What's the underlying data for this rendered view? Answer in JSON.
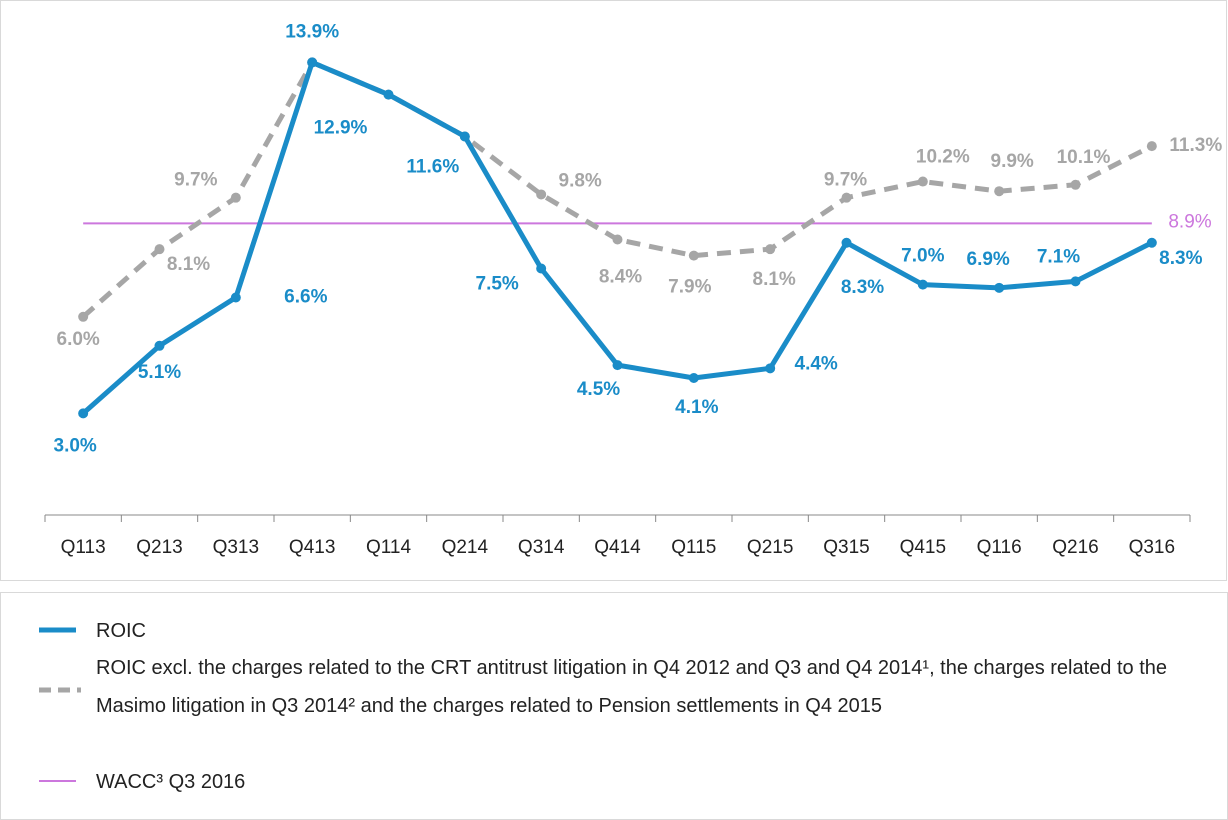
{
  "chart_data": {
    "type": "line",
    "categories": [
      "Q113",
      "Q213",
      "Q313",
      "Q413",
      "Q114",
      "Q214",
      "Q314",
      "Q414",
      "Q115",
      "Q215",
      "Q315",
      "Q415",
      "Q116",
      "Q216",
      "Q316"
    ],
    "series": [
      {
        "name": "ROIC",
        "color": "#1a8cc8",
        "dash": false,
        "values": [
          3.0,
          5.1,
          6.6,
          13.9,
          12.9,
          11.6,
          7.5,
          4.5,
          4.1,
          4.4,
          8.3,
          7.0,
          6.9,
          7.1,
          8.3
        ],
        "value_labels": [
          "3.0%",
          "5.1%",
          "6.6%",
          "13.9%",
          "12.9%",
          "11.6%",
          "7.5%",
          "4.5%",
          "4.1%",
          "4.4%",
          "8.3%",
          "7.0%",
          "6.9%",
          "7.1%",
          "8.3%"
        ]
      },
      {
        "name": "ROIC excl. the charges related to the CRT antitrust litigation in Q4 2012 and Q3 and Q4 2014¹, the charges related to the Masimo litigation in  Q3 2014² and the charges related to Pension settlements in Q4 2015",
        "color": "#a6a6a6",
        "dash": true,
        "values": [
          6.0,
          8.1,
          9.7,
          13.9,
          12.9,
          11.6,
          9.8,
          8.4,
          7.9,
          8.1,
          9.7,
          10.2,
          9.9,
          10.1,
          11.3
        ],
        "value_labels": [
          "6.0%",
          "8.1%",
          "9.7%",
          null,
          null,
          null,
          "9.8%",
          "8.4%",
          "7.9%",
          "8.1%",
          "9.7%",
          "10.2%",
          "9.9%",
          "10.1%",
          "11.3%"
        ]
      }
    ],
    "reference_line": {
      "name": "WACC³ Q3 2016",
      "value": 8.9,
      "label": "8.9%",
      "color": "#cc77dd"
    },
    "ylim": [
      0,
      15
    ]
  }
}
